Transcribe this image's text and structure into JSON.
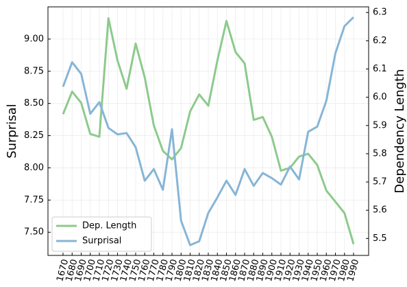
{
  "chart_data": {
    "type": "line",
    "y_label": "Surprisal",
    "y2_label": "Dependency Length",
    "categories": [
      "1670",
      "1680",
      "1690",
      "1700",
      "1710",
      "1720",
      "1730",
      "1740",
      "1750",
      "1760",
      "1770",
      "1780",
      "1790",
      "1800",
      "1810",
      "1820",
      "1830",
      "1840",
      "1850",
      "1860",
      "1870",
      "1880",
      "1890",
      "1900",
      "1910",
      "1920",
      "1930",
      "1940",
      "1950",
      "1960",
      "1970",
      "1980",
      "1990"
    ],
    "series": [
      {
        "name": "Dep. Length",
        "color": "#8cca8c",
        "axis": "y2",
        "values": [
          5.94,
          6.02,
          5.98,
          5.87,
          5.86,
          6.28,
          6.13,
          6.03,
          6.19,
          6.07,
          5.9,
          5.81,
          5.78,
          5.82,
          5.95,
          6.01,
          5.97,
          6.13,
          6.27,
          6.16,
          6.12,
          5.92,
          5.93,
          5.86,
          5.74,
          5.75,
          5.79,
          5.8,
          5.76,
          5.67,
          5.63,
          5.59,
          5.48
        ]
      },
      {
        "name": "Surprisal",
        "color": "#86b5d6",
        "axis": "y",
        "values": [
          8.63,
          8.82,
          8.73,
          8.42,
          8.51,
          8.31,
          8.26,
          8.27,
          8.16,
          7.9,
          7.99,
          7.83,
          8.3,
          7.59,
          7.4,
          7.43,
          7.65,
          7.77,
          7.9,
          7.79,
          7.99,
          7.86,
          7.96,
          7.92,
          7.87,
          8.01,
          7.91,
          8.28,
          8.32,
          8.52,
          8.89,
          9.1,
          9.17
        ]
      }
    ],
    "ylim": [
      7.32,
      9.25
    ],
    "yticks": [
      {
        "value": 7.5,
        "label": "7.50"
      },
      7.75,
      {
        "value": 8,
        "label": "8.00"
      },
      8.25,
      {
        "value": 8.5,
        "label": "8.50"
      },
      8.75,
      {
        "value": 9,
        "label": "9.00"
      }
    ],
    "y2lim": [
      5.44,
      6.32
    ],
    "y2ticks": [
      5.5,
      5.6,
      5.7,
      5.8,
      5.9,
      6.0,
      6.1,
      6.2,
      6.3
    ],
    "grid": true,
    "legend": "lower left"
  }
}
